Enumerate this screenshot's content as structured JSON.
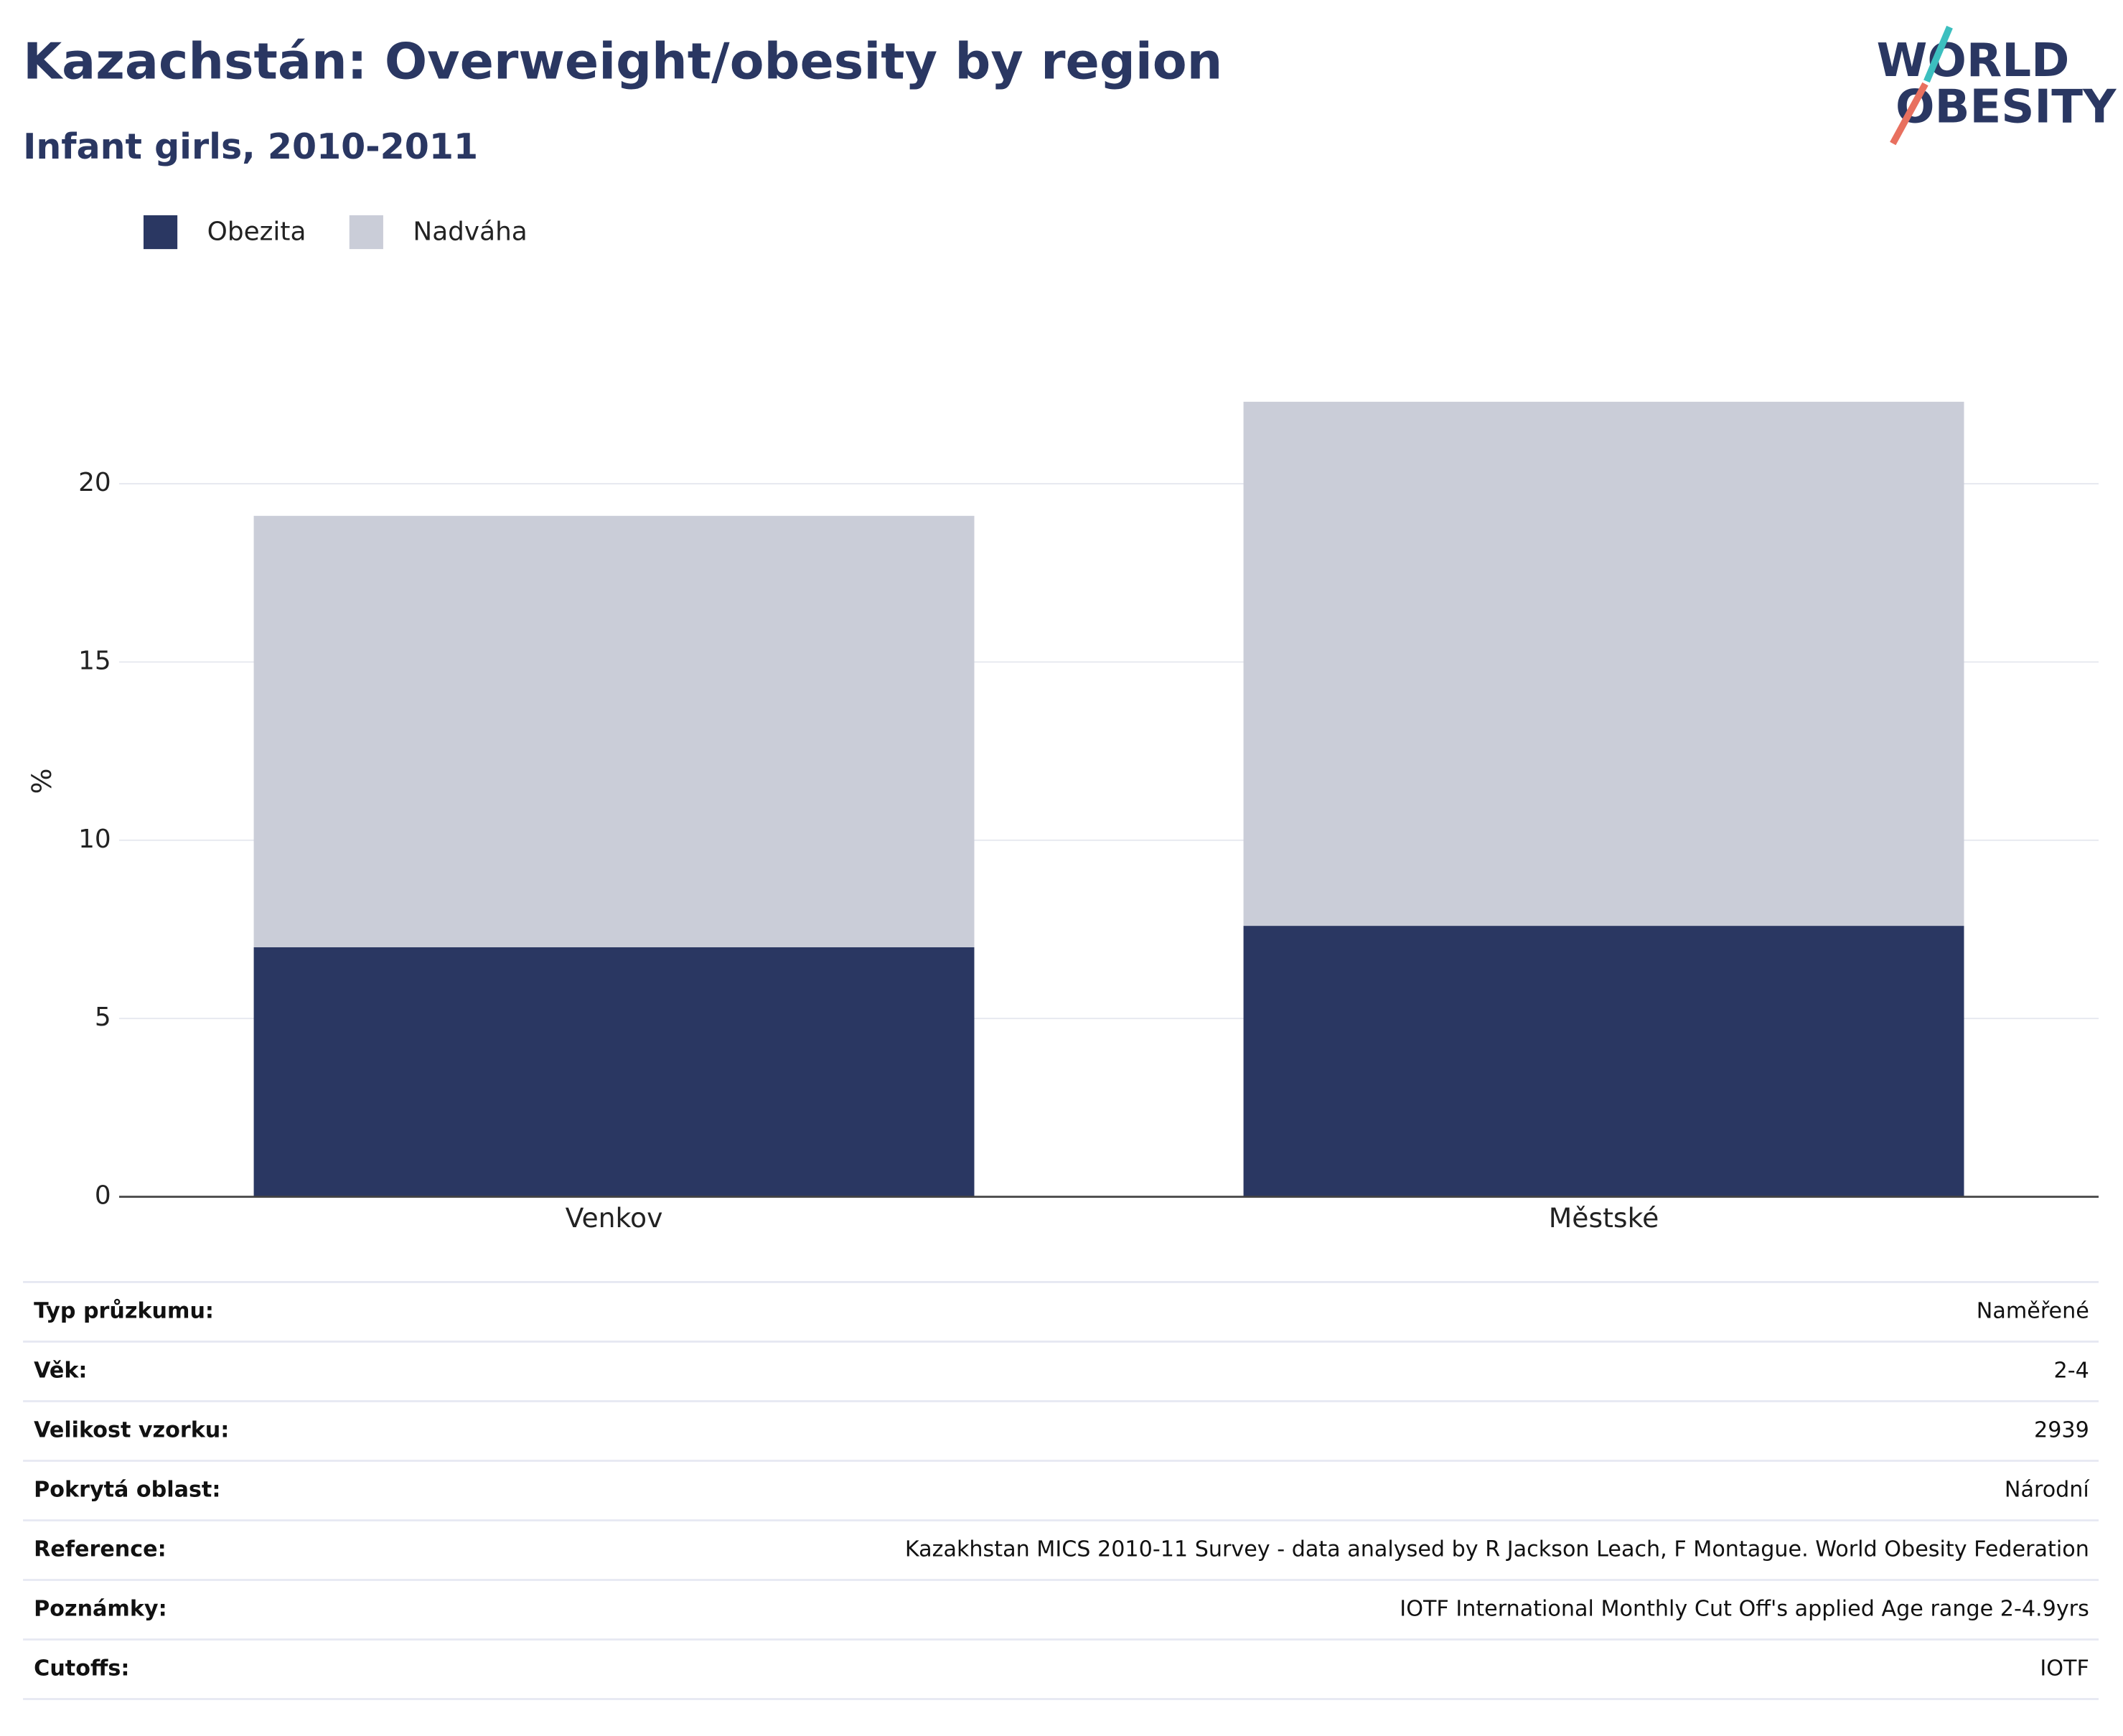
{
  "chart_data": {
    "type": "stacked_bar",
    "title": "Kazachstán: Overweight/obesity by region",
    "subtitle": "Infant girls, 2010-2011",
    "y_label": "%",
    "categories": [
      "Venkov",
      "Městské"
    ],
    "series": [
      {
        "name": "Obezita",
        "color": "#2a3762",
        "values": [
          7.0,
          7.6
        ]
      },
      {
        "name": "Nadváha",
        "color": "#cacdd8",
        "values": [
          12.1,
          14.7
        ]
      }
    ],
    "ylim": [
      0,
      24
    ],
    "yticks": [
      0,
      5,
      10,
      15,
      20
    ],
    "grid": true
  },
  "logo": {
    "line1": "WORLD",
    "line2": "OBESITY"
  },
  "table": {
    "rows": [
      [
        "Typ průzkumu:",
        "Naměřené"
      ],
      [
        "Věk:",
        "2-4"
      ],
      [
        "Velikost vzorku:",
        "2939"
      ],
      [
        "Pokrytá oblast:",
        "Národní"
      ],
      [
        "Reference:",
        "Kazakhstan MICS 2010-11 Survey - data analysed by R Jackson Leach, F Montague. World Obesity Federation"
      ],
      [
        "Poznámky:",
        "IOTF International Monthly Cut Off's applied Age range 2-4.9yrs"
      ],
      [
        "Cutoffs:",
        "IOTF"
      ]
    ]
  }
}
